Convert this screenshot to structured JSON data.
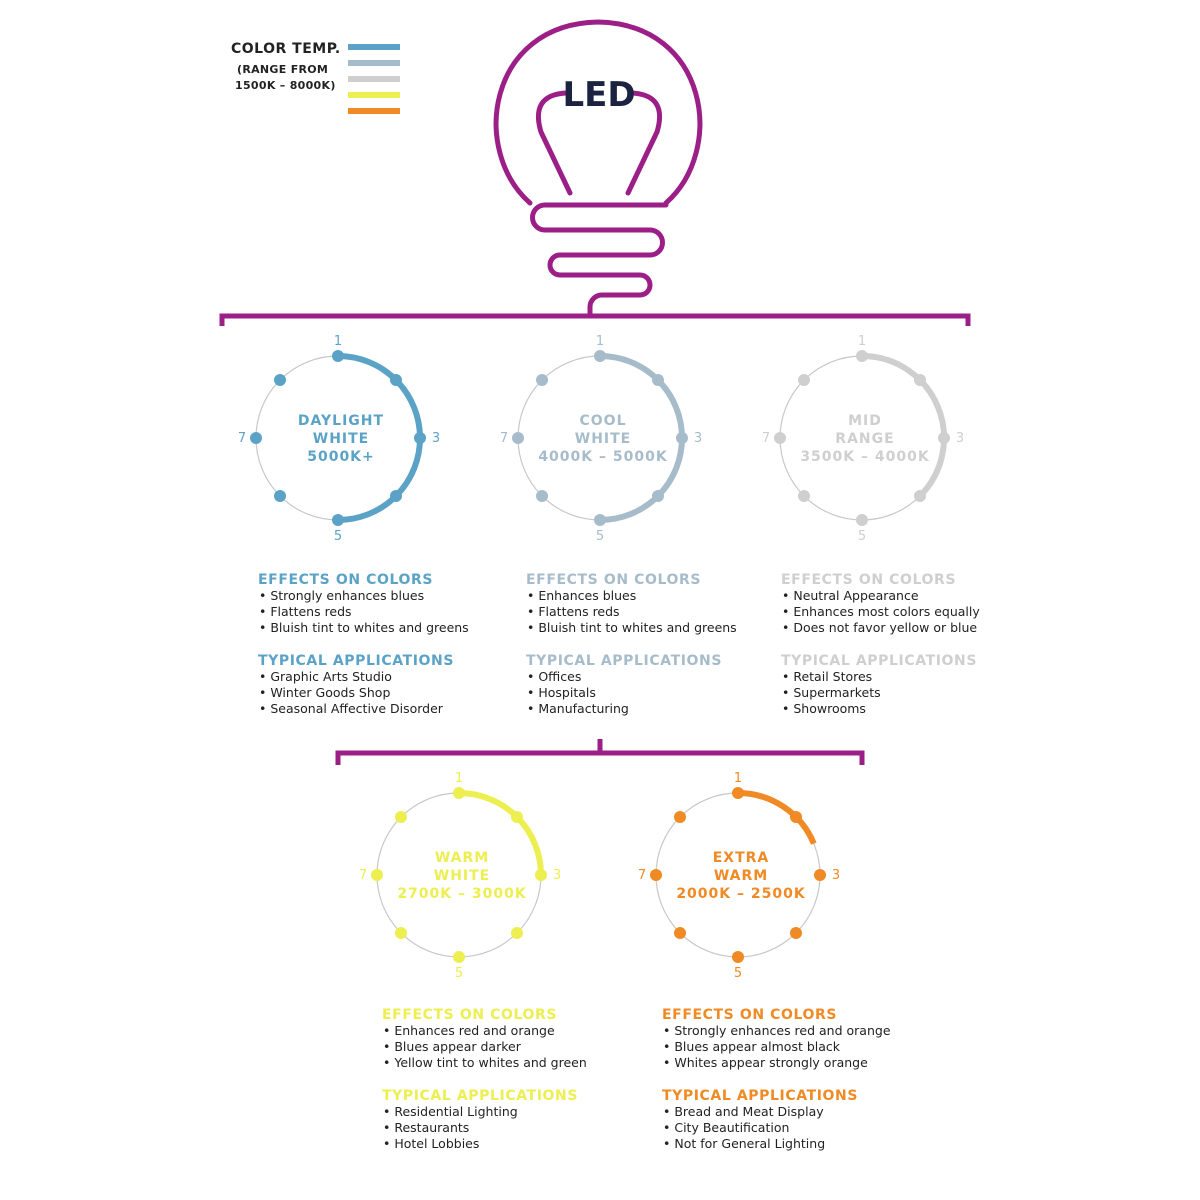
{
  "legend": {
    "title": "COLOR TEMP.",
    "subtitle_line1": "(RANGE FROM",
    "subtitle_line2": "1500K – 8000K)",
    "swatches": [
      "#5ba3c6",
      "#a7bccb",
      "#cfcfcf",
      "#ecef4f",
      "#f08a24"
    ]
  },
  "bulb": {
    "label": "LED",
    "color": "#9b1f86",
    "label_color": "#1c2340"
  },
  "dial_numbers": [
    "1",
    "3",
    "5",
    "7"
  ],
  "categories": [
    {
      "name_lines": [
        "DAYLIGHT",
        "WHITE",
        "5000K+"
      ],
      "color": "#5ba3c6",
      "arc_end_position": 5,
      "effects_heading": "EFFECTS ON COLORS",
      "effects": [
        "Strongly enhances blues",
        "Flattens reds",
        "Bluish tint to whites and greens"
      ],
      "applications_heading": "TYPICAL APPLICATIONS",
      "applications": [
        "Graphic Arts Studio",
        "Winter Goods Shop",
        "Seasonal Affective Disorder"
      ]
    },
    {
      "name_lines": [
        "COOL",
        "WHITE",
        "4000K – 5000K"
      ],
      "color": "#a7bccb",
      "arc_end_position": 5,
      "effects_heading": "EFFECTS ON COLORS",
      "effects": [
        "Enhances blues",
        "Flattens reds",
        "Bluish tint to whites and greens"
      ],
      "applications_heading": "TYPICAL APPLICATIONS",
      "applications": [
        "Offices",
        "Hospitals",
        "Manufacturing"
      ]
    },
    {
      "name_lines": [
        "MID",
        "RANGE",
        "3500K – 4000K"
      ],
      "color": "#cfcfcf",
      "arc_end_position": 4,
      "effects_heading": "EFFECTS ON COLORS",
      "effects": [
        "Neutral Appearance",
        "Enhances most colors equally",
        "Does not favor yellow or blue"
      ],
      "applications_heading": "TYPICAL APPLICATIONS",
      "applications": [
        "Retail Stores",
        "Supermarkets",
        "Showrooms"
      ]
    },
    {
      "name_lines": [
        "WARM",
        "WHITE",
        "2700K – 3000K"
      ],
      "color": "#ecef4f",
      "arc_end_position": 3,
      "effects_heading": "EFFECTS ON COLORS",
      "effects": [
        "Enhances red and orange",
        "Blues appear darker",
        "Yellow tint to whites and green"
      ],
      "applications_heading": "TYPICAL APPLICATIONS",
      "applications": [
        "Residential Lighting",
        "Restaurants",
        "Hotel Lobbies"
      ]
    },
    {
      "name_lines": [
        "EXTRA",
        "WARM",
        "2000K – 2500K"
      ],
      "color": "#f08a24",
      "arc_end_position": 2.5,
      "effects_heading": "EFFECTS ON COLORS",
      "effects": [
        "Strongly enhances red and orange",
        "Blues appear almost black",
        "Whites appear strongly orange"
      ],
      "applications_heading": "TYPICAL APPLICATIONS",
      "applications": [
        "Bread and Meat Display",
        "City Beautification",
        "Not for General Lighting"
      ]
    }
  ]
}
